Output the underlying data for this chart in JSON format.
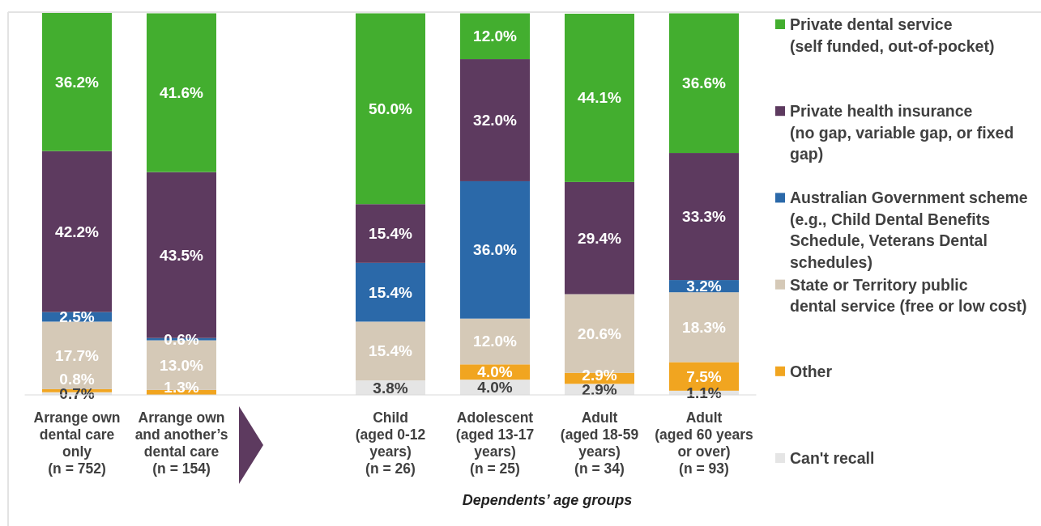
{
  "chart_data": {
    "type": "bar",
    "stacked": true,
    "legend": "right",
    "tick_labels": "x",
    "xlabel": "Dependents’ age groups",
    "categories": [
      "Arrange own\ndental care\nonly\n(n = 752)",
      "Arrange own\nand another’s\ndental care\n(n = 154)",
      null,
      "Child\n(aged 0-12\nyears)\n(n = 26)",
      "Adolescent\n(aged 13-17\nyears)\n(n = 25)",
      "Adult\n(aged 18-59\nyears)\n(n = 34)",
      "Adult\n(aged 60 years\nor over)\n(n = 93)"
    ],
    "series": [
      {
        "name": "Can't recall",
        "color": "#e5e5e5",
        "values": [
          0.7,
          null,
          null,
          3.8,
          4.0,
          2.9,
          1.1
        ],
        "value_labels": [
          "0.7%",
          null,
          null,
          "3.8%",
          "4.0%",
          "2.9%",
          "1.1%"
        ]
      },
      {
        "name": "Other",
        "color": "#f1a520",
        "values": [
          0.8,
          1.3,
          null,
          null,
          4.0,
          2.9,
          7.5
        ],
        "value_labels": [
          "0.8%",
          "1.3%",
          null,
          null,
          "4.0%",
          "2.9%",
          "7.5%"
        ]
      },
      {
        "name": "State or Territory public\ndental service (free or low cost)",
        "color": "#d5c9b7",
        "values": [
          17.7,
          13.0,
          null,
          15.4,
          12.0,
          20.6,
          18.3
        ],
        "value_labels": [
          "17.7%",
          "13.0%",
          null,
          "15.4%",
          "12.0%",
          "20.6%",
          "18.3%"
        ]
      },
      {
        "name": "Australian Government scheme\n(e.g., Child Dental Benefits\nSchedule, Veterans Dental\nschedules)",
        "color": "#2b69a9",
        "values": [
          2.5,
          0.6,
          null,
          15.4,
          36.0,
          null,
          3.2
        ],
        "value_labels": [
          "2.5%",
          "0.6%",
          null,
          "15.4%",
          "36.0%",
          null,
          "3.2%"
        ]
      },
      {
        "name": "Private health insurance\n(no gap, variable gap, or fixed\ngap)",
        "color": "#5d3a5f",
        "values": [
          42.2,
          43.5,
          null,
          15.4,
          32.0,
          29.4,
          33.3
        ],
        "value_labels": [
          "42.2%",
          "43.5%",
          null,
          "15.4%",
          "32.0%",
          "29.4%",
          "33.3%"
        ]
      },
      {
        "name": "Private dental service\n(self funded, out-of-pocket)",
        "color": "#43ae2f",
        "values": [
          36.2,
          41.6,
          null,
          50.0,
          12.0,
          44.1,
          36.6
        ],
        "value_labels": [
          "36.2%",
          "41.6%",
          null,
          "50.0%",
          "12.0%",
          "44.1%",
          "36.6%"
        ]
      }
    ]
  }
}
